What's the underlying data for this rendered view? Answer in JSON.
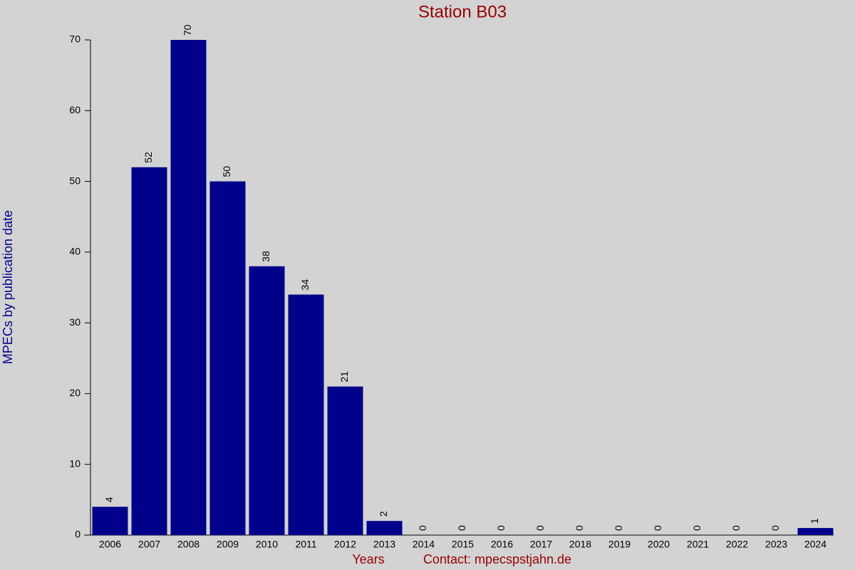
{
  "chart_data": {
    "type": "bar",
    "title": "Station B03",
    "x_label": "Years",
    "y_label": "MPECs by publication date",
    "annotation": "Contact: mpecspstjahn.de",
    "categories": [
      "2006",
      "2007",
      "2008",
      "2009",
      "2010",
      "2011",
      "2012",
      "2013",
      "2014",
      "2015",
      "2016",
      "2017",
      "2018",
      "2019",
      "2020",
      "2021",
      "2022",
      "2023",
      "2024"
    ],
    "values": [
      4,
      52,
      70,
      50,
      38,
      34,
      21,
      2,
      0,
      0,
      0,
      0,
      0,
      0,
      0,
      0,
      0,
      0,
      1
    ],
    "color": "#00008b",
    "ylim": [
      0,
      70
    ],
    "yticks": [
      0,
      10,
      20,
      30,
      40,
      50,
      60,
      70
    ],
    "grid": false
  }
}
